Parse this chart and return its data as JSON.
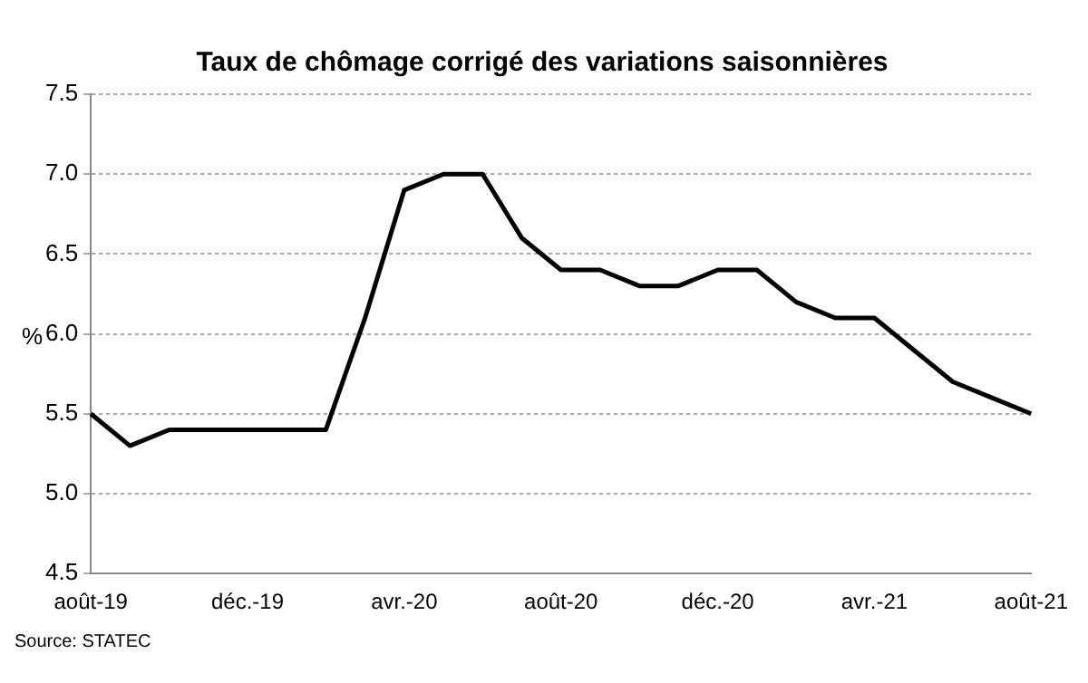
{
  "chart_data": {
    "type": "line",
    "title": "Taux de chômage corrigé des variations saisonnières",
    "ylabel": "%",
    "categories": [
      "août-19",
      null,
      null,
      null,
      "déc.-19",
      null,
      null,
      null,
      "avr.-20",
      null,
      null,
      null,
      "août-20",
      null,
      null,
      null,
      "déc.-20",
      null,
      null,
      null,
      "avr.-21",
      null,
      null,
      null,
      "août-21"
    ],
    "series": [
      {
        "color": "#000000",
        "values": [
          5.5,
          5.3,
          5.4,
          5.4,
          5.4,
          5.4,
          5.4,
          6.1,
          6.9,
          7.0,
          7.0,
          6.6,
          6.4,
          6.4,
          6.3,
          6.3,
          6.4,
          6.4,
          6.2,
          6.1,
          6.1,
          5.9,
          5.7,
          5.6,
          5.5
        ]
      }
    ],
    "ylim": [
      4.5,
      7.5
    ],
    "yticks": [
      {
        "value": 4.5,
        "label": "4.5"
      },
      {
        "value": 5,
        "label": "5.0"
      },
      {
        "value": 5.5,
        "label": "5.5"
      },
      {
        "value": 6,
        "label": "6.0"
      },
      {
        "value": 6.5,
        "label": "6.5"
      },
      {
        "value": 7,
        "label": "7.0"
      },
      {
        "value": 7.5,
        "label": "7.5"
      }
    ],
    "grid": "y",
    "legend": false,
    "marker": "none",
    "line_style": "solid",
    "annotations": [
      "Source: STATEC"
    ]
  }
}
